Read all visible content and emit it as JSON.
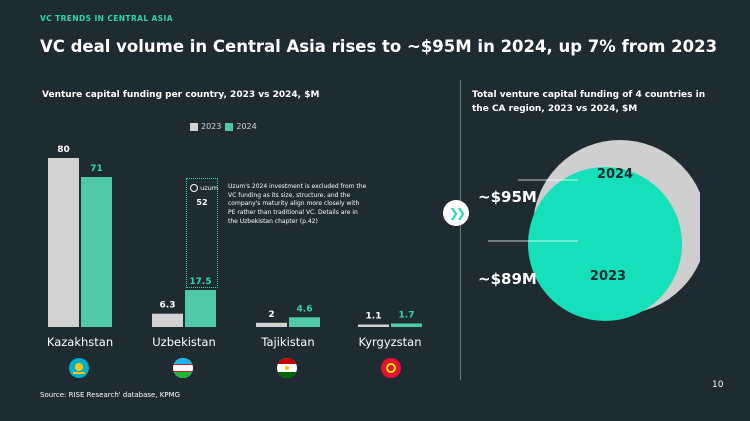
{
  "header": {
    "kicker": "VC TRENDS IN CENTRAL ASIA",
    "title": "VC deal volume in Central Asia rises to ~$95M in 2024, up 7% from 2023"
  },
  "colors": {
    "background": "#1e2b31",
    "accent": "#2fd6ae",
    "bar2023": "#d2d2d2",
    "bar2024": "#4fc9a8",
    "bubble2024": "#cfcfcf",
    "bubble2023": "#16e0ba"
  },
  "chart_data": [
    {
      "type": "bar",
      "title": "Venture capital funding per country, 2023 vs 2024, $M",
      "categories": [
        "Kazakhstan",
        "Uzbekistan",
        "Tajikistan",
        "Kyrgyzstan"
      ],
      "series": [
        {
          "name": "2023",
          "values": [
            80,
            6.3,
            2,
            1.1
          ],
          "labels": [
            "80",
            "6.3",
            "2",
            "1.1"
          ]
        },
        {
          "name": "2024",
          "values": [
            71,
            17.5,
            4.6,
            1.7
          ],
          "labels": [
            "71",
            "17.5",
            "4.6",
            "1.7"
          ]
        }
      ],
      "ylim": [
        0,
        80
      ],
      "legend": "top-center",
      "annotation": {
        "company": "uzum",
        "value_label": "52",
        "value": 52,
        "text": "Uzum's 2024 investment is excluded from the VC funding as its size, structure, and the company's maturity align more closely with PE rather than traditional VC. Details are in the Uzbekistan chapter (p.42)"
      },
      "flag_icons": [
        "kazakhstan-flag-icon",
        "uzbekistan-flag-icon",
        "tajikistan-flag-icon",
        "kyrgyzstan-flag-icon"
      ]
    },
    {
      "type": "bubble",
      "title": "Total venture capital funding of 4 countries in the CA region, 2023 vs 2024, $M",
      "series": [
        {
          "name": "2024",
          "value": 95,
          "label": "~$95M"
        },
        {
          "name": "2023",
          "value": 89,
          "label": "~$89M"
        }
      ]
    }
  ],
  "footer": {
    "source": "Source: RISE Research' database, KPMG",
    "page": "10"
  },
  "icons": {
    "arrow": "double-chevron-right-icon",
    "uzum": "uzum-logo-icon"
  }
}
